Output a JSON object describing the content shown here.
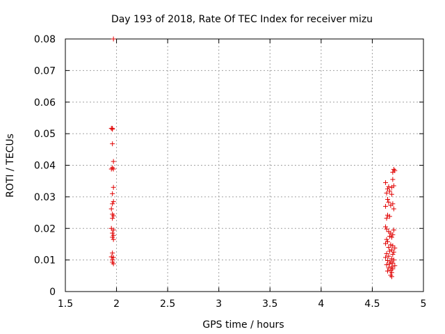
{
  "chart_data": {
    "type": "scatter",
    "title": "Day 193 of 2018, Rate Of TEC Index for receiver mizu",
    "xlabel": "GPS time / hours",
    "ylabel": "ROTI / TECUs",
    "xlim": [
      1.5,
      5
    ],
    "ylim": [
      0,
      0.08
    ],
    "grid": true,
    "x_ticks": [
      1.5,
      2,
      2.5,
      3,
      3.5,
      4,
      4.5,
      5
    ],
    "x_tick_labels": [
      "1.5",
      "2",
      "2.5",
      "3",
      "3.5",
      "4",
      "4.5",
      "5"
    ],
    "y_ticks": [
      0,
      0.01,
      0.02,
      0.03,
      0.04,
      0.05,
      0.06,
      0.07,
      0.08
    ],
    "y_tick_labels": [
      "0",
      "0.01",
      "0.02",
      "0.03",
      "0.04",
      "0.05",
      "0.06",
      "0.07",
      "0.08"
    ],
    "marker_color": "#e00000",
    "marker": "plus",
    "series": [
      {
        "name": "ROTI",
        "points": [
          [
            1.97,
            0.08
          ],
          [
            1.95,
            0.0517
          ],
          [
            1.96,
            0.0517
          ],
          [
            1.96,
            0.0514
          ],
          [
            1.96,
            0.0468
          ],
          [
            1.97,
            0.0412
          ],
          [
            1.96,
            0.0392
          ],
          [
            1.95,
            0.0388
          ],
          [
            1.97,
            0.0388
          ],
          [
            1.97,
            0.033
          ],
          [
            1.96,
            0.031
          ],
          [
            1.97,
            0.0285
          ],
          [
            1.96,
            0.0278
          ],
          [
            1.95,
            0.0262
          ],
          [
            1.96,
            0.0245
          ],
          [
            1.97,
            0.024
          ],
          [
            1.96,
            0.0232
          ],
          [
            1.95,
            0.02
          ],
          [
            1.97,
            0.0195
          ],
          [
            1.96,
            0.0185
          ],
          [
            1.97,
            0.0178
          ],
          [
            1.96,
            0.0172
          ],
          [
            1.97,
            0.0165
          ],
          [
            1.96,
            0.0122
          ],
          [
            1.95,
            0.011
          ],
          [
            1.97,
            0.0108
          ],
          [
            1.96,
            0.01
          ],
          [
            1.96,
            0.0093
          ],
          [
            1.97,
            0.0088
          ],
          [
            4.71,
            0.0387
          ],
          [
            4.72,
            0.0383
          ],
          [
            4.7,
            0.0378
          ],
          [
            4.7,
            0.0355
          ],
          [
            4.63,
            0.0345
          ],
          [
            4.66,
            0.0332
          ],
          [
            4.69,
            0.033
          ],
          [
            4.71,
            0.0335
          ],
          [
            4.65,
            0.0325
          ],
          [
            4.64,
            0.0312
          ],
          [
            4.67,
            0.0318
          ],
          [
            4.69,
            0.0308
          ],
          [
            4.65,
            0.0292
          ],
          [
            4.66,
            0.0283
          ],
          [
            4.7,
            0.0278
          ],
          [
            4.68,
            0.0273
          ],
          [
            4.63,
            0.027
          ],
          [
            4.71,
            0.0262
          ],
          [
            4.65,
            0.0242
          ],
          [
            4.67,
            0.0238
          ],
          [
            4.64,
            0.0232
          ],
          [
            4.63,
            0.0205
          ],
          [
            4.64,
            0.0198
          ],
          [
            4.71,
            0.0195
          ],
          [
            4.66,
            0.019
          ],
          [
            4.68,
            0.0185
          ],
          [
            4.7,
            0.018
          ],
          [
            4.67,
            0.0175
          ],
          [
            4.69,
            0.0172
          ],
          [
            4.64,
            0.0165
          ],
          [
            4.65,
            0.0158
          ],
          [
            4.63,
            0.0152
          ],
          [
            4.68,
            0.0148
          ],
          [
            4.7,
            0.0145
          ],
          [
            4.66,
            0.014
          ],
          [
            4.72,
            0.0138
          ],
          [
            4.69,
            0.0132
          ],
          [
            4.67,
            0.0128
          ],
          [
            4.71,
            0.0125
          ],
          [
            4.64,
            0.012
          ],
          [
            4.7,
            0.0118
          ],
          [
            4.66,
            0.0112
          ],
          [
            4.63,
            0.0108
          ],
          [
            4.69,
            0.0104
          ],
          [
            4.71,
            0.01
          ],
          [
            4.65,
            0.0098
          ],
          [
            4.68,
            0.0094
          ],
          [
            4.7,
            0.009
          ],
          [
            4.67,
            0.0088
          ],
          [
            4.64,
            0.0085
          ],
          [
            4.72,
            0.0082
          ],
          [
            4.69,
            0.0078
          ],
          [
            4.66,
            0.0075
          ],
          [
            4.7,
            0.0072
          ],
          [
            4.68,
            0.0068
          ],
          [
            4.65,
            0.0065
          ],
          [
            4.69,
            0.006
          ],
          [
            4.68,
            0.0052
          ],
          [
            4.69,
            0.0047
          ]
        ]
      }
    ]
  }
}
